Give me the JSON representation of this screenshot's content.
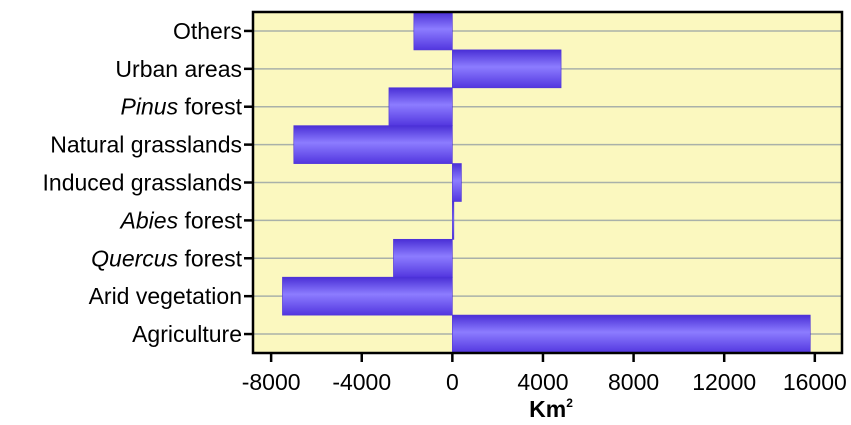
{
  "chart_data": {
    "type": "bar",
    "orientation": "horizontal",
    "categories": [
      {
        "parts": [
          {
            "text": "Others",
            "italic": false
          }
        ]
      },
      {
        "parts": [
          {
            "text": "Urban areas",
            "italic": false
          }
        ]
      },
      {
        "parts": [
          {
            "text": "Pinus",
            "italic": true
          },
          {
            "text": " forest",
            "italic": false
          }
        ]
      },
      {
        "parts": [
          {
            "text": "Natural grasslands",
            "italic": false
          }
        ]
      },
      {
        "parts": [
          {
            "text": "Induced grasslands",
            "italic": false
          }
        ]
      },
      {
        "parts": [
          {
            "text": "Abies",
            "italic": true
          },
          {
            "text": " forest",
            "italic": false
          }
        ]
      },
      {
        "parts": [
          {
            "text": "Quercus",
            "italic": true
          },
          {
            "text": " forest",
            "italic": false
          }
        ]
      },
      {
        "parts": [
          {
            "text": "Arid vegetation",
            "italic": false
          }
        ]
      },
      {
        "parts": [
          {
            "text": "Agriculture",
            "italic": false
          }
        ]
      }
    ],
    "values": [
      -1700,
      4800,
      -2800,
      -7000,
      400,
      50,
      -2600,
      -7500,
      15800
    ],
    "xlabel": {
      "base": "Km",
      "superscript": "2"
    },
    "xlim": [
      -8800,
      17200
    ],
    "xticks": [
      -8000,
      -4000,
      0,
      4000,
      8000,
      12000,
      16000
    ],
    "xtick_labels": [
      "-8000",
      "-4000",
      "0",
      "4000",
      "8000",
      "12000",
      "16000"
    ],
    "grid": "horizontal",
    "colors": {
      "plot_background": "#fbf8bf",
      "bar_edge": "#4d33d8",
      "bar_mid": "#8c7cff",
      "bar_dark": "#5a3fe6",
      "gridline": "#a9b1a9",
      "axis": "#000000"
    }
  }
}
